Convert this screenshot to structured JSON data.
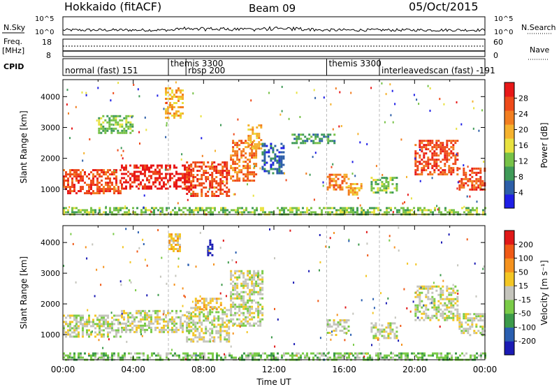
{
  "header": {
    "station": "Hokkaido (fitACF)",
    "beam": "Beam 09",
    "date": "05/Oct/2015"
  },
  "noise_panel": {
    "left_label": "N.Sky",
    "right_label": "N.Search",
    "tick_top": "10^5",
    "tick_bottom": "10^0"
  },
  "freq_panel": {
    "left_label_1": "Freq.",
    "left_label_2": "[MHz]",
    "right_label": "Nave",
    "left_ticks": [
      "18",
      "8"
    ],
    "right_ticks": [
      "60",
      "0"
    ]
  },
  "cpid": {
    "label": "CPID",
    "segments": [
      {
        "text": "normal (fast) 151",
        "start": 0,
        "row": 1
      },
      {
        "text": "themis 3300",
        "start": 6.0,
        "row": 0
      },
      {
        "text": "rbsp 200",
        "start": 7.0,
        "row": 1
      },
      {
        "text": "themis 3300",
        "start": 15.0,
        "row": 0
      },
      {
        "text": "interleavedscan (fast) -191",
        "start": 18.0,
        "row": 1
      }
    ]
  },
  "power_colorbar": {
    "label": "Power [dB]",
    "ticks": [
      "4",
      "8",
      "12",
      "16",
      "20",
      "24",
      "28"
    ],
    "colors": [
      "#1e1ee6",
      "#2d5fa8",
      "#3f9a58",
      "#77c248",
      "#e8e240",
      "#f5b22e",
      "#f27e20",
      "#ee4a1a",
      "#e81818"
    ]
  },
  "velocity_colorbar": {
    "label": "Velocity [m s⁻¹]",
    "ticks": [
      "200",
      "100",
      "50",
      "15",
      "-15",
      "-50",
      "-100",
      "-200"
    ],
    "colors": [
      "#1a1ab4",
      "#2a5fb0",
      "#3c9a4a",
      "#7acb48",
      "#c4c4bc",
      "#f3c624",
      "#f5921e",
      "#f05a16",
      "#e01818"
    ]
  },
  "chart_data": [
    {
      "type": "heatmap",
      "name": "power",
      "ylabel": "Slant Range [km]",
      "yticks": [
        "1000",
        "2000",
        "3000",
        "4000"
      ],
      "xticks": [
        "00:00",
        "04:00",
        "08:00",
        "12:00",
        "16:00",
        "20:00",
        "00:00"
      ],
      "xlabel": "Time UT",
      "xlim": [
        0,
        24
      ],
      "ylim": [
        180,
        4550
      ],
      "regions": [
        {
          "t0": 0.0,
          "t1": 3.3,
          "r0": 900,
          "r1": 1650,
          "level": 7
        },
        {
          "t0": 3.3,
          "t1": 7.3,
          "r0": 1050,
          "r1": 1800,
          "level": 8
        },
        {
          "t0": 7.0,
          "t1": 9.5,
          "r0": 800,
          "r1": 1900,
          "level": 7
        },
        {
          "t0": 9.5,
          "t1": 11.0,
          "r0": 1300,
          "r1": 2600,
          "level": 6
        },
        {
          "t0": 10.5,
          "t1": 11.3,
          "r0": 2300,
          "r1": 3100,
          "level": 5
        },
        {
          "t0": 11.3,
          "t1": 12.5,
          "r0": 1500,
          "r1": 2500,
          "level": 1
        },
        {
          "t0": 15.0,
          "t1": 16.2,
          "r0": 1000,
          "r1": 1500,
          "level": 6
        },
        {
          "t0": 16.2,
          "t1": 17.0,
          "r0": 850,
          "r1": 1200,
          "level": 5
        },
        {
          "t0": 17.5,
          "t1": 19.0,
          "r0": 900,
          "r1": 1400,
          "level": 3
        },
        {
          "t0": 13.0,
          "t1": 15.5,
          "r0": 2500,
          "r1": 2800,
          "level": 2
        },
        {
          "t0": 20.0,
          "t1": 22.5,
          "r0": 1500,
          "r1": 2600,
          "level": 7
        },
        {
          "t0": 22.5,
          "t1": 24.0,
          "r0": 1000,
          "r1": 1700,
          "level": 7
        },
        {
          "t0": 2.0,
          "t1": 4.0,
          "r0": 2800,
          "r1": 3400,
          "level": 3
        },
        {
          "t0": 5.8,
          "t1": 6.8,
          "r0": 3300,
          "r1": 4300,
          "level": 5
        },
        {
          "t0": 0.0,
          "t1": 24.0,
          "r0": 200,
          "r1": 420,
          "level": 3
        }
      ]
    },
    {
      "type": "heatmap",
      "name": "velocity",
      "ylabel": "Slant Range [km]",
      "yticks": [
        "1000",
        "2000",
        "3000",
        "4000"
      ],
      "xlim": [
        0,
        24
      ],
      "ylim": [
        180,
        4550
      ],
      "regions": [
        {
          "t0": 0.0,
          "t1": 3.3,
          "r0": 900,
          "r1": 1650,
          "level": 4
        },
        {
          "t0": 3.3,
          "t1": 7.3,
          "r0": 1050,
          "r1": 1800,
          "level": 4
        },
        {
          "t0": 7.0,
          "t1": 9.5,
          "r0": 800,
          "r1": 1900,
          "level": 4
        },
        {
          "t0": 9.5,
          "t1": 11.3,
          "r0": 1300,
          "r1": 3100,
          "level": 4
        },
        {
          "t0": 7.5,
          "t1": 9.0,
          "r0": 1800,
          "r1": 2200,
          "level": 5
        },
        {
          "t0": 15.0,
          "t1": 16.2,
          "r0": 1000,
          "r1": 1500,
          "level": 4
        },
        {
          "t0": 17.5,
          "t1": 19.0,
          "r0": 900,
          "r1": 1400,
          "level": 4
        },
        {
          "t0": 20.0,
          "t1": 22.5,
          "r0": 1500,
          "r1": 2600,
          "level": 4
        },
        {
          "t0": 22.5,
          "t1": 24.0,
          "r0": 1000,
          "r1": 1700,
          "level": 4
        },
        {
          "t0": 6.0,
          "t1": 6.6,
          "r0": 3700,
          "r1": 4300,
          "level": 5
        },
        {
          "t0": 8.2,
          "t1": 8.5,
          "r0": 3600,
          "r1": 4100,
          "level": 0
        },
        {
          "t0": 0.0,
          "t1": 24.0,
          "r0": 200,
          "r1": 420,
          "level": 3
        }
      ]
    }
  ]
}
